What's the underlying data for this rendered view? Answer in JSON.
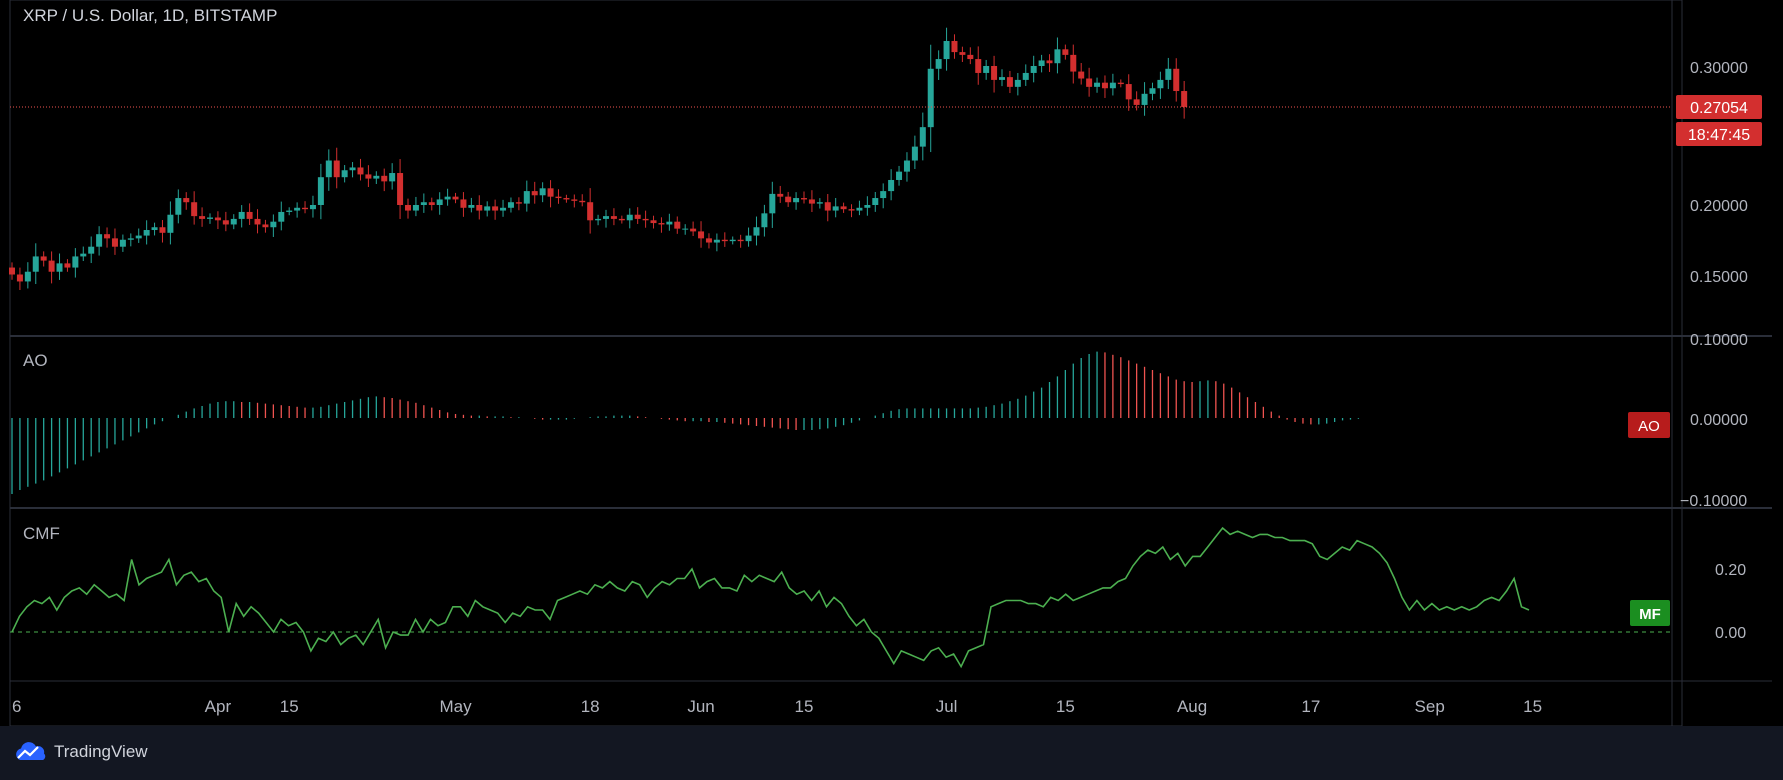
{
  "chart_data": {
    "type": "candlestick",
    "title": "XRP / U.S. Dollar, 1D, BITSTAMP",
    "price_scale": {
      "ticks": [
        "0.15000",
        "0.20000",
        "0.30000"
      ],
      "ylim": [
        0.12,
        0.34
      ]
    },
    "last_price": {
      "label": "0.27054",
      "countdown": "18:47:45",
      "value": 0.27054
    },
    "x_ticks": [
      "6",
      "Apr",
      "15",
      "May",
      "18",
      "Jun",
      "15",
      "Jul",
      "15",
      "Aug",
      "17",
      "Sep",
      "15"
    ],
    "x_tick_days": [
      6,
      32,
      41,
      62,
      79,
      93,
      106,
      124,
      139,
      155,
      170,
      185,
      198
    ],
    "panes": [
      {
        "name": "AO",
        "badge": "AO",
        "ticks": [
          "0.10000",
          "0.00000",
          "−0.10000"
        ],
        "ylim": [
          -0.1,
          0.1
        ]
      },
      {
        "name": "CMF",
        "badge": "MF",
        "ticks": [
          "0.20",
          "0.00"
        ],
        "ylim": [
          -0.12,
          0.36
        ]
      }
    ],
    "close": [
      0.15,
      0.145,
      0.152,
      0.163,
      0.16,
      0.152,
      0.158,
      0.155,
      0.163,
      0.165,
      0.17,
      0.179,
      0.176,
      0.17,
      0.175,
      0.176,
      0.178,
      0.182,
      0.184,
      0.18,
      0.193,
      0.205,
      0.202,
      0.192,
      0.19,
      0.191,
      0.189,
      0.186,
      0.19,
      0.195,
      0.19,
      0.186,
      0.184,
      0.188,
      0.195,
      0.196,
      0.198,
      0.197,
      0.2,
      0.22,
      0.232,
      0.22,
      0.225,
      0.227,
      0.222,
      0.219,
      0.221,
      0.217,
      0.223,
      0.2,
      0.196,
      0.2,
      0.202,
      0.2,
      0.204,
      0.206,
      0.204,
      0.198,
      0.2,
      0.196,
      0.199,
      0.196,
      0.198,
      0.202,
      0.201,
      0.21,
      0.207,
      0.212,
      0.206,
      0.205,
      0.204,
      0.203,
      0.202,
      0.189,
      0.19,
      0.192,
      0.19,
      0.189,
      0.193,
      0.19,
      0.189,
      0.187,
      0.186,
      0.188,
      0.183,
      0.183,
      0.181,
      0.176,
      0.173,
      0.175,
      0.174,
      0.175,
      0.174,
      0.178,
      0.184,
      0.194,
      0.208,
      0.206,
      0.202,
      0.205,
      0.204,
      0.201,
      0.202,
      0.196,
      0.199,
      0.197,
      0.196,
      0.198,
      0.2,
      0.205,
      0.21,
      0.218,
      0.224,
      0.232,
      0.242,
      0.256,
      0.298,
      0.305,
      0.318,
      0.31,
      0.308,
      0.305,
      0.295,
      0.3,
      0.29,
      0.292,
      0.285,
      0.29,
      0.295,
      0.3,
      0.304,
      0.302,
      0.312,
      0.308,
      0.296,
      0.291,
      0.285,
      0.288,
      0.284,
      0.288,
      0.287,
      0.276,
      0.272,
      0.28,
      0.284,
      0.29,
      0.298,
      0.282,
      0.27054
    ],
    "ao": [
      -0.095,
      -0.09,
      -0.086,
      -0.082,
      -0.078,
      -0.073,
      -0.068,
      -0.063,
      -0.058,
      -0.053,
      -0.048,
      -0.043,
      -0.038,
      -0.033,
      -0.028,
      -0.023,
      -0.018,
      -0.013,
      -0.008,
      -0.004,
      0.0,
      0.004,
      0.008,
      0.012,
      0.015,
      0.018,
      0.02,
      0.021,
      0.021,
      0.02,
      0.02,
      0.019,
      0.018,
      0.017,
      0.016,
      0.015,
      0.014,
      0.013,
      0.013,
      0.014,
      0.016,
      0.018,
      0.02,
      0.022,
      0.024,
      0.026,
      0.027,
      0.026,
      0.025,
      0.023,
      0.021,
      0.019,
      0.016,
      0.013,
      0.01,
      0.007,
      0.005,
      0.004,
      0.003,
      0.003,
      0.002,
      0.002,
      0.002,
      0.001,
      0.001,
      0.0,
      -0.001,
      -0.002,
      -0.002,
      -0.002,
      -0.002,
      -0.001,
      0.0,
      0.001,
      0.002,
      0.002,
      0.003,
      0.003,
      0.003,
      0.002,
      0.001,
      0.0,
      -0.001,
      -0.002,
      -0.003,
      -0.004,
      -0.004,
      -0.004,
      -0.005,
      -0.005,
      -0.006,
      -0.007,
      -0.008,
      -0.009,
      -0.01,
      -0.011,
      -0.012,
      -0.013,
      -0.014,
      -0.015,
      -0.015,
      -0.015,
      -0.014,
      -0.013,
      -0.011,
      -0.009,
      -0.006,
      -0.003,
      0.0,
      0.003,
      0.006,
      0.009,
      0.011,
      0.012,
      0.012,
      0.012,
      0.012,
      0.012,
      0.012,
      0.012,
      0.012,
      0.012,
      0.013,
      0.014,
      0.016,
      0.018,
      0.021,
      0.024,
      0.028,
      0.033,
      0.038,
      0.045,
      0.052,
      0.06,
      0.068,
      0.075,
      0.08,
      0.083,
      0.082,
      0.079,
      0.076,
      0.072,
      0.068,
      0.064,
      0.06,
      0.056,
      0.052,
      0.048,
      0.046,
      0.045,
      0.046,
      0.047,
      0.046,
      0.043,
      0.038,
      0.032,
      0.026,
      0.02,
      0.014,
      0.008,
      0.003,
      -0.002,
      -0.005,
      -0.007,
      -0.008,
      -0.008,
      -0.007,
      -0.005,
      -0.003,
      -0.002,
      -0.001
    ],
    "cmf": [
      0.0,
      0.05,
      0.08,
      0.1,
      0.09,
      0.11,
      0.07,
      0.11,
      0.13,
      0.14,
      0.12,
      0.15,
      0.13,
      0.11,
      0.12,
      0.1,
      0.23,
      0.15,
      0.17,
      0.18,
      0.19,
      0.23,
      0.15,
      0.18,
      0.19,
      0.16,
      0.17,
      0.13,
      0.11,
      0.0,
      0.09,
      0.05,
      0.08,
      0.06,
      0.03,
      0.0,
      0.04,
      0.02,
      0.03,
      0.0,
      -0.06,
      -0.02,
      -0.03,
      0.0,
      -0.04,
      -0.02,
      -0.01,
      -0.04,
      0.0,
      0.04,
      -0.05,
      0.0,
      -0.01,
      -0.01,
      0.04,
      0.0,
      0.04,
      0.02,
      0.03,
      0.08,
      0.08,
      0.05,
      0.1,
      0.08,
      0.07,
      0.06,
      0.03,
      0.06,
      0.05,
      0.08,
      0.07,
      0.07,
      0.04,
      0.1,
      0.11,
      0.12,
      0.13,
      0.12,
      0.15,
      0.14,
      0.16,
      0.14,
      0.13,
      0.16,
      0.15,
      0.11,
      0.14,
      0.16,
      0.15,
      0.17,
      0.17,
      0.2,
      0.14,
      0.16,
      0.17,
      0.14,
      0.14,
      0.13,
      0.18,
      0.16,
      0.18,
      0.17,
      0.16,
      0.19,
      0.14,
      0.12,
      0.13,
      0.1,
      0.13,
      0.08,
      0.11,
      0.09,
      0.05,
      0.02,
      0.04,
      0.0,
      -0.02,
      -0.06,
      -0.1,
      -0.06,
      -0.07,
      -0.08,
      -0.09,
      -0.06,
      -0.05,
      -0.08,
      -0.07,
      -0.11,
      -0.06,
      -0.05,
      -0.04,
      0.08,
      0.09,
      0.1,
      0.1,
      0.1,
      0.09,
      0.09,
      0.08,
      0.11,
      0.1,
      0.12,
      0.1,
      0.11,
      0.12,
      0.13,
      0.14,
      0.14,
      0.16,
      0.17,
      0.21,
      0.24,
      0.26,
      0.25,
      0.27,
      0.23,
      0.25,
      0.21,
      0.24,
      0.24,
      0.27,
      0.3,
      0.33,
      0.31,
      0.32,
      0.31,
      0.3,
      0.31,
      0.31,
      0.3,
      0.3,
      0.29,
      0.29,
      0.29,
      0.28,
      0.24,
      0.23,
      0.25,
      0.27,
      0.26,
      0.29,
      0.28,
      0.27,
      0.25,
      0.22,
      0.17,
      0.11,
      0.07,
      0.1,
      0.07,
      0.09,
      0.07,
      0.08,
      0.07,
      0.08,
      0.07,
      0.08,
      0.1,
      0.11,
      0.1,
      0.13,
      0.17,
      0.08,
      0.07
    ],
    "colors": {
      "up": "#26a69a",
      "down": "#d32f2f",
      "ao_up": "#26a69a",
      "ao_down": "#ef5350",
      "cmf": "#4caf50",
      "badge_ao": "#b71c1c",
      "badge_mf": "#1b8e20"
    }
  },
  "footer": {
    "brand": "TradingView"
  }
}
